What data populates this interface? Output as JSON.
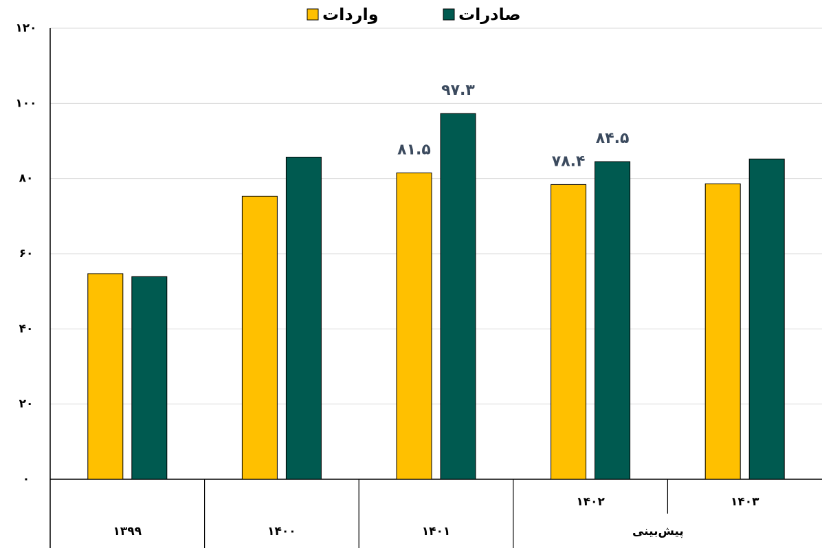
{
  "chart_data": {
    "type": "bar",
    "categories": [
      "۱۳۹۹",
      "۱۴۰۰",
      "۱۴۰۱",
      "۱۴۰۲",
      "۱۴۰۳"
    ],
    "category_groups": [
      {
        "label": "پیش‌بینی",
        "from": 3
      }
    ],
    "series": [
      {
        "name": "واردات",
        "color": "#ffc000",
        "values": [
          54.7,
          75.3,
          81.5,
          78.4,
          78.6
        ],
        "value_labels": [
          null,
          null,
          "۸۱.۵",
          "۷۸.۴",
          null
        ]
      },
      {
        "name": "صادرات",
        "color": "#005a50",
        "values": [
          53.9,
          85.7,
          97.3,
          84.5,
          85.2
        ],
        "value_labels": [
          null,
          null,
          "۹۷.۳",
          "۸۴.۵",
          null
        ]
      }
    ],
    "ylim": [
      0,
      120
    ],
    "yticks": [
      {
        "value": 0,
        "label": "۰"
      },
      {
        "value": 20,
        "label": "۲۰"
      },
      {
        "value": 40,
        "label": "۴۰"
      },
      {
        "value": 60,
        "label": "۶۰"
      },
      {
        "value": 80,
        "label": "۸۰"
      },
      {
        "value": 100,
        "label": "۱۰۰"
      },
      {
        "value": 120,
        "label": "۱۲۰"
      }
    ],
    "grid": true
  }
}
